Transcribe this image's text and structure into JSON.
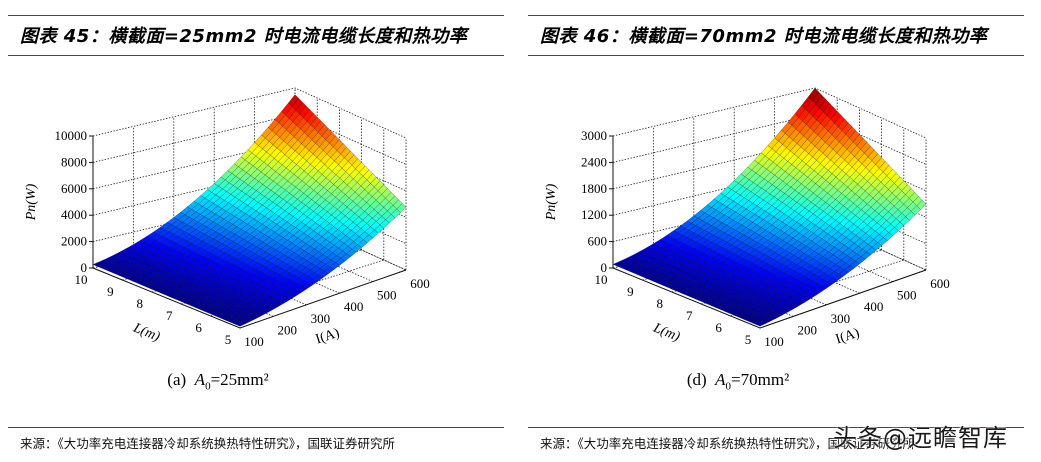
{
  "figures": [
    {
      "title": "图表 45：横截面=25mm2 时电流电缆长度和热功率",
      "caption_prefix": "(a)",
      "caption_var": "A",
      "caption_sub": "0",
      "caption_value": "=25mm²",
      "source": "来源：《大功率充电连接器冷却系统换热特性研究》，国联证券研究所"
    },
    {
      "title": "图表 46：横截面=70mm2 时电流电缆长度和热功率",
      "caption_prefix": "(d)",
      "caption_var": "A",
      "caption_sub": "0",
      "caption_value": "=70mm²",
      "source": "来源：《大功率充电连接器冷却系统换热特性研究》，国联证券研究所"
    }
  ],
  "watermark": "头条@远瞻智库",
  "colors": {
    "rule": "#8b2252"
  },
  "chart_data": [
    {
      "type": "surface3d",
      "title": "横截面=25mm2 时电流电缆长度和热功率",
      "subtitle": "(a) A0=25mm²",
      "xlabel": "I(A)",
      "ylabel": "L(m)",
      "zlabel": "Pn(W)",
      "x_ticks": [
        100,
        200,
        300,
        400,
        500,
        600
      ],
      "y_ticks": [
        5,
        6,
        7,
        8,
        9,
        10
      ],
      "z_ticks": [
        0,
        2000,
        4000,
        6000,
        8000,
        10000
      ],
      "xlim": [
        100,
        600
      ],
      "ylim": [
        5,
        10
      ],
      "zlim": [
        0,
        10000
      ],
      "grid": true,
      "colormap": "jet",
      "corner_values": [
        {
          "I": 100,
          "L": 5,
          "P": 0
        },
        {
          "I": 100,
          "L": 10,
          "P": 100
        },
        {
          "I": 600,
          "L": 5,
          "P": 3700
        },
        {
          "I": 600,
          "L": 10,
          "P": 9500
        }
      ]
    },
    {
      "type": "surface3d",
      "title": "横截面=70mm2 时电流电缆长度和热功率",
      "subtitle": "(d) A0=70mm²",
      "xlabel": "I(A)",
      "ylabel": "L(m)",
      "zlabel": "Pn(W)",
      "x_ticks": [
        100,
        200,
        300,
        400,
        500,
        600
      ],
      "y_ticks": [
        5,
        6,
        7,
        8,
        9,
        10
      ],
      "z_ticks": [
        0,
        600,
        1200,
        1800,
        2400,
        3000
      ],
      "xlim": [
        100,
        600
      ],
      "ylim": [
        5,
        10
      ],
      "zlim": [
        0,
        3000
      ],
      "grid": true,
      "colormap": "jet",
      "corner_values": [
        {
          "I": 100,
          "L": 5,
          "P": 0
        },
        {
          "I": 100,
          "L": 10,
          "P": 30
        },
        {
          "I": 600,
          "L": 5,
          "P": 1150
        },
        {
          "I": 600,
          "L": 10,
          "P": 3000
        }
      ]
    }
  ]
}
